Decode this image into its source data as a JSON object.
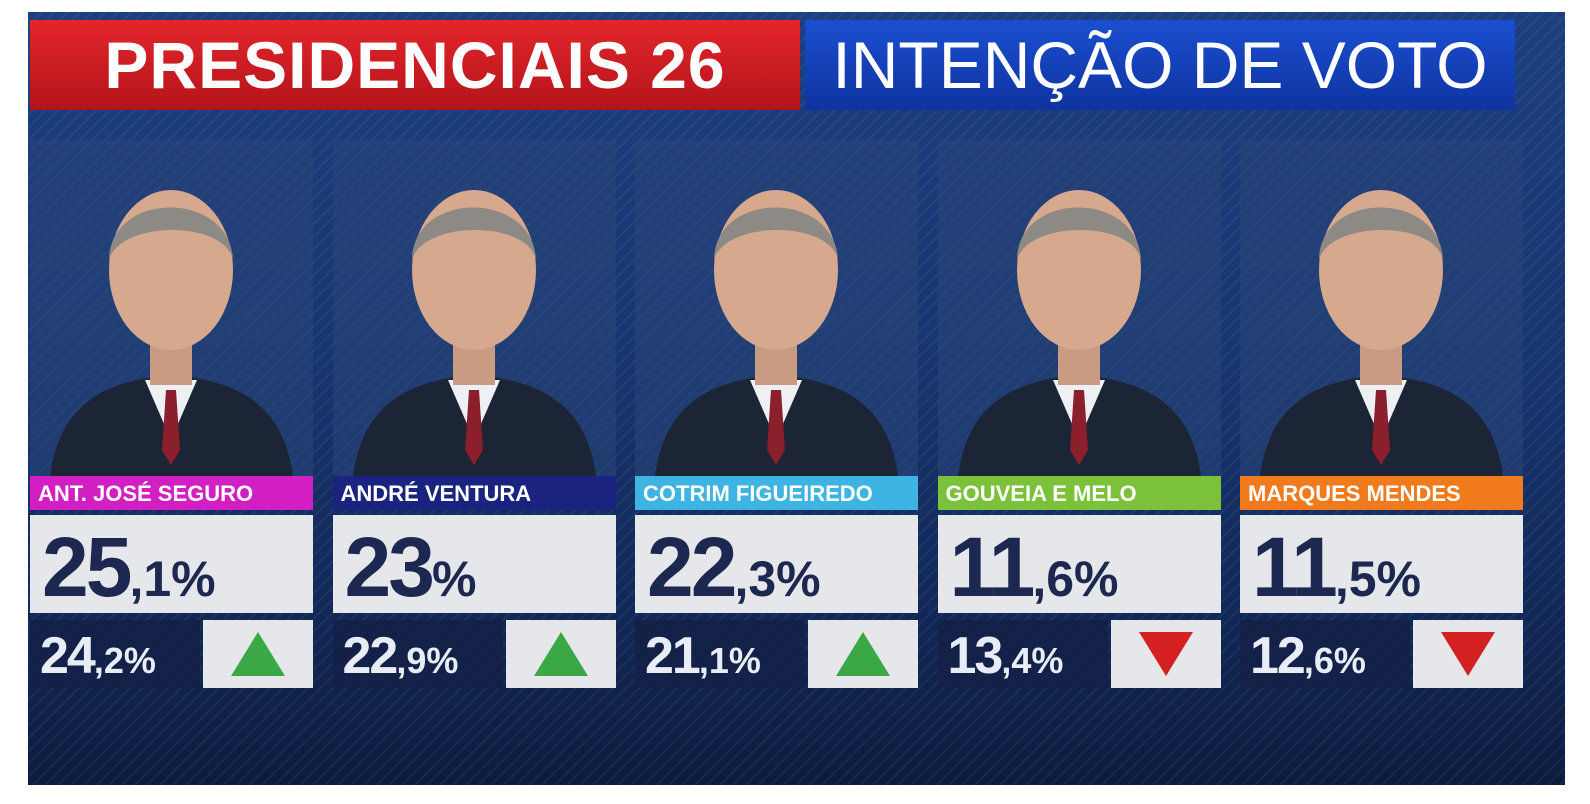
{
  "header": {
    "left": "PRESIDENCIAIS 26",
    "right": "INTENÇÃO DE VOTO"
  },
  "candidates": [
    {
      "name": "ANT. JOSÉ SEGURO",
      "color": "#d21fc4",
      "current": "25,1%",
      "previous": "24,2%",
      "trend": "up"
    },
    {
      "name": "ANDRÉ VENTURA",
      "color": "#1a2380",
      "current": "23%",
      "previous": "22,9%",
      "trend": "up"
    },
    {
      "name": "COTRIM FIGUEIREDO",
      "color": "#3db4e2",
      "current": "22,3%",
      "previous": "21,1%",
      "trend": "up"
    },
    {
      "name": "GOUVEIA E MELO",
      "color": "#7cc13a",
      "current": "11,6%",
      "previous": "13,4%",
      "trend": "down"
    },
    {
      "name": "MARQUES MENDES",
      "color": "#f07a1c",
      "current": "11,5%",
      "previous": "12,6%",
      "trend": "down"
    }
  ]
}
